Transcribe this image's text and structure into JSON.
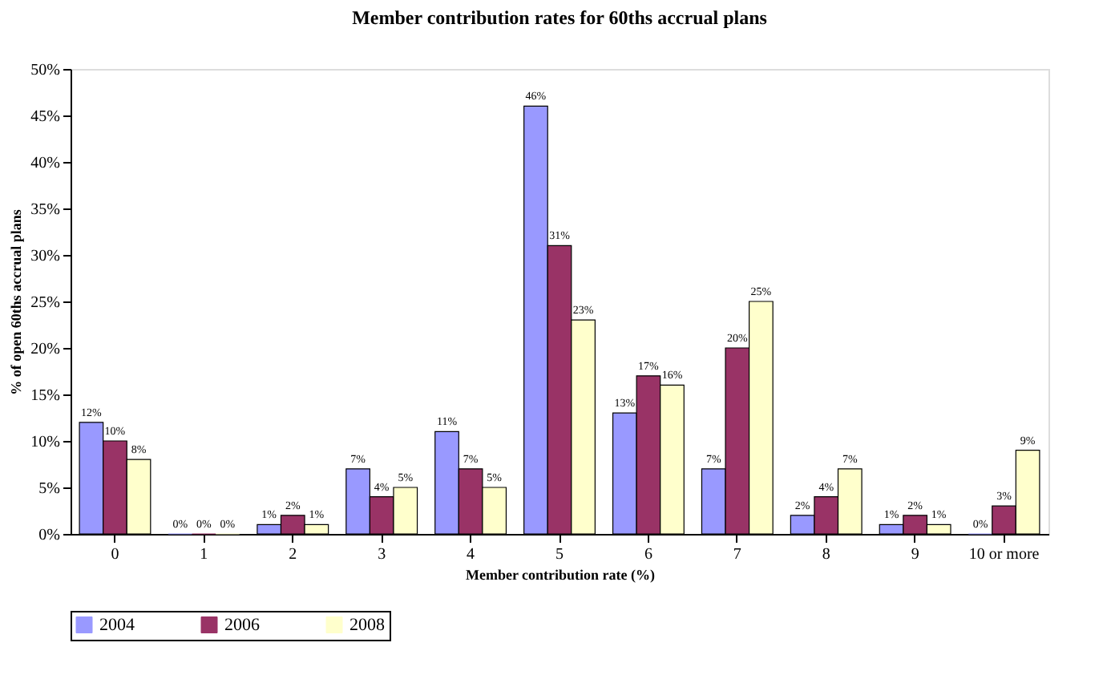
{
  "chart_data": {
    "type": "bar",
    "title": "Member contribution rates for 60ths accrual plans",
    "xlabel": "Member contribution rate (%)",
    "ylabel": "% of open 60ths accrual plans",
    "categories": [
      "0",
      "1",
      "2",
      "3",
      "4",
      "5",
      "6",
      "7",
      "8",
      "9",
      "10 or more"
    ],
    "series": [
      {
        "name": "2004",
        "color": "#9999ff",
        "values": [
          12,
          0,
          1,
          7,
          11,
          46,
          13,
          7,
          2,
          1,
          0
        ],
        "value_labels": [
          "12%",
          "0%",
          "1%",
          "7%",
          "11%",
          "46%",
          "13%",
          "7%",
          "2%",
          "1%",
          "0%"
        ]
      },
      {
        "name": "2006",
        "color": "#993366",
        "values": [
          10,
          0,
          2,
          4,
          7,
          31,
          17,
          20,
          4,
          2,
          3
        ],
        "value_labels": [
          "10%",
          "0%",
          "2%",
          "4%",
          "7%",
          "31%",
          "17%",
          "20%",
          "4%",
          "2%",
          "3%"
        ]
      },
      {
        "name": "2008",
        "color": "#ffffcc",
        "values": [
          8,
          0,
          1,
          5,
          5,
          23,
          16,
          25,
          7,
          1,
          9
        ],
        "value_labels": [
          "8%",
          "0%",
          "1%",
          "5%",
          "5%",
          "23%",
          "16%",
          "25%",
          "7%",
          "1%",
          "9%"
        ]
      }
    ],
    "ylim": [
      0,
      50
    ],
    "yticks": [
      {
        "value": 0,
        "label": "0%"
      },
      {
        "value": 5,
        "label": "5%"
      },
      {
        "value": 10,
        "label": "10%"
      },
      {
        "value": 15,
        "label": "15%"
      },
      {
        "value": 20,
        "label": "20%"
      },
      {
        "value": 25,
        "label": "25%"
      },
      {
        "value": 30,
        "label": "30%"
      },
      {
        "value": 35,
        "label": "35%"
      },
      {
        "value": 40,
        "label": "40%"
      },
      {
        "value": 45,
        "label": "45%"
      },
      {
        "value": 50,
        "label": "50%"
      }
    ],
    "grid": false,
    "legend": "bottom"
  }
}
